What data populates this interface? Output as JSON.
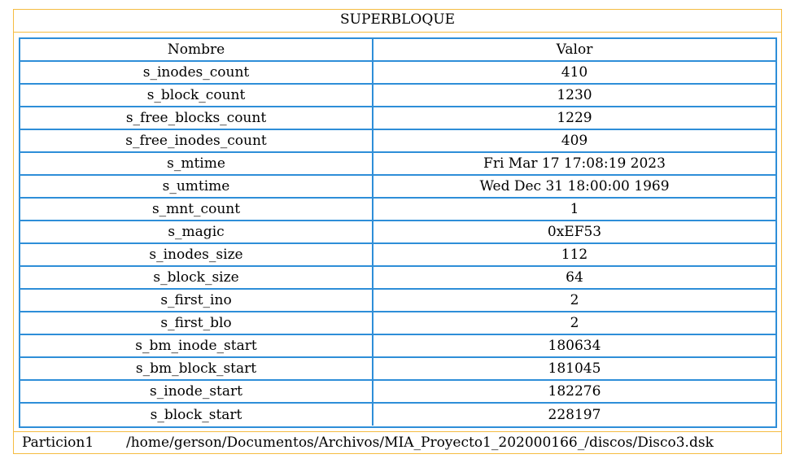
{
  "report": {
    "title": "SUPERBLOQUE",
    "headers": {
      "name": "Nombre",
      "value": "Valor"
    },
    "rows": [
      {
        "name": "s_inodes_count",
        "value": "410"
      },
      {
        "name": "s_block_count",
        "value": "1230"
      },
      {
        "name": "s_free_blocks_count",
        "value": "1229"
      },
      {
        "name": "s_free_inodes_count",
        "value": "409"
      },
      {
        "name": "s_mtime",
        "value": "Fri Mar 17 17:08:19 2023"
      },
      {
        "name": "s_umtime",
        "value": "Wed Dec 31 18:00:00 1969"
      },
      {
        "name": "s_mnt_count",
        "value": "1"
      },
      {
        "name": "s_magic",
        "value": "0xEF53"
      },
      {
        "name": "s_inodes_size",
        "value": "112"
      },
      {
        "name": "s_block_size",
        "value": "64"
      },
      {
        "name": "s_first_ino",
        "value": "2"
      },
      {
        "name": "s_first_blo",
        "value": "2"
      },
      {
        "name": "s_bm_inode_start",
        "value": "180634"
      },
      {
        "name": "s_bm_block_start",
        "value": "181045"
      },
      {
        "name": "s_inode_start",
        "value": "182276"
      },
      {
        "name": "s_block_start",
        "value": "228197"
      }
    ],
    "footer": {
      "partition": "Particion1",
      "path": "/home/gerson/Documentos/Archivos/MIA_Proyecto1_202000166_/discos/Disco3.dsk"
    }
  },
  "colors": {
    "outer_border": "#F5BC42",
    "inner_border": "#2E8ED8"
  }
}
